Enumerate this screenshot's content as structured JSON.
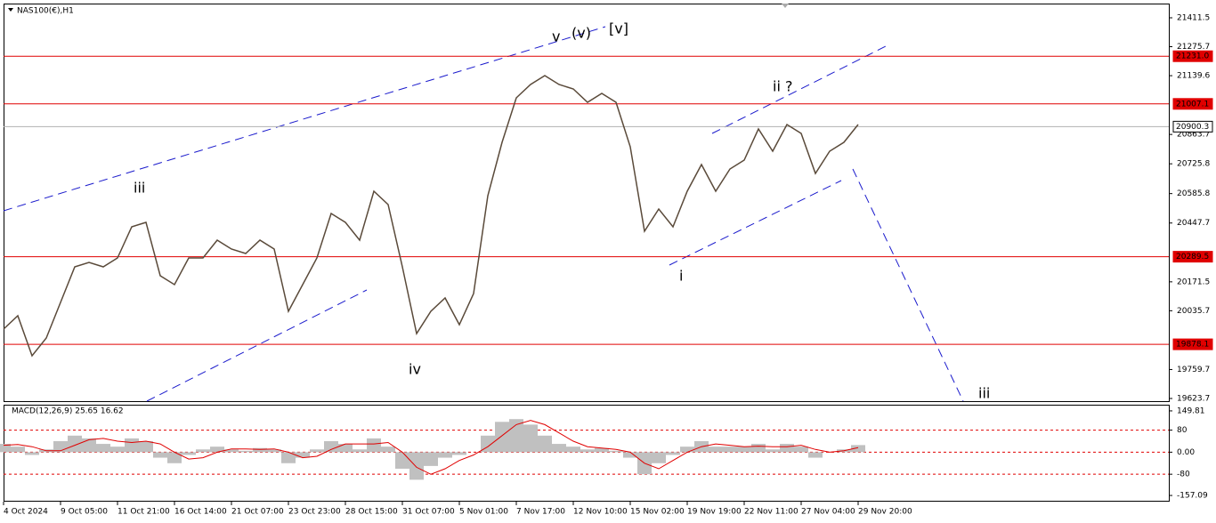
{
  "chart_data": {
    "type": "line",
    "title": "NAS100(€),H1",
    "categories": [
      "4 Oct 2024",
      null,
      null,
      null,
      "9 Oct 05:00",
      null,
      null,
      null,
      "11 Oct 21:00",
      null,
      null,
      null,
      "16 Oct 14:00",
      null,
      null,
      null,
      "21 Oct 07:00",
      null,
      null,
      null,
      "23 Oct 23:00",
      null,
      null,
      null,
      "28 Oct 15:00",
      null,
      null,
      null,
      "31 Oct 07:00",
      null,
      null,
      null,
      "5 Nov 01:00",
      null,
      null,
      null,
      "7 Nov 17:00",
      null,
      null,
      null,
      "12 Nov 10:00",
      null,
      null,
      null,
      "15 Nov 02:00",
      null,
      null,
      null,
      "19 Nov 19:00",
      null,
      null,
      null,
      "22 Nov 11:00",
      null,
      null,
      null,
      "27 Nov 04:00",
      null,
      null,
      null,
      "29 Nov 20:00"
    ],
    "values": [
      19949.6,
      20012.2,
      19824.2,
      19907.8,
      20074.9,
      20241.9,
      20262.8,
      20241.9,
      20283.7,
      20429.9,
      20450.8,
      20200.2,
      20158.4,
      20283.7,
      20283.7,
      20367.2,
      20325.5,
      20304.6,
      20367.2,
      20325.5,
      20033.1,
      20158.4,
      20283.7,
      20492.6,
      20450.8,
      20367.2,
      20597.0,
      20534.3,
      20241.9,
      19928.7,
      20033.1,
      20095.7,
      19970.4,
      20116.6,
      20576.1,
      20826.7,
      21035.6,
      21098.2,
      21140.0,
      21098.2,
      21077.3,
      21014.7,
      21056.5,
      21014.7,
      20805.8,
      20409.0,
      20513.4,
      20429.9,
      20597.0,
      20722.3,
      20597.0,
      20701.4,
      20743.2,
      20889.4,
      20784.9,
      20910.3,
      20868.5,
      20680.5,
      20784.9,
      20826.7,
      20910.3
    ],
    "color": "#5a4a3a",
    "ylim": [
      19611.2,
      21478.3
    ],
    "yticks": [
      21411.5,
      21275.7,
      21139.6,
      20863.7,
      20725.8,
      20585.8,
      20447.7,
      20171.5,
      20035.7,
      19759.7,
      19623.7
    ],
    "levels": [
      {
        "value": 21231.0,
        "label": "21231.0",
        "color": "#e00000"
      },
      {
        "value": 21007.1,
        "label": "21007.1",
        "color": "#e00000"
      },
      {
        "value": 20900.3,
        "label": "20900.3",
        "color": "#b0b0b0"
      },
      {
        "value": 20289.5,
        "label": "20289.5",
        "color": "#e00000"
      },
      {
        "value": 19878.1,
        "label": "19878.1",
        "color": "#e00000"
      }
    ],
    "annotations": [
      {
        "text": "v",
        "color": "#e020e0"
      },
      {
        "text": "(v)",
        "color": "#1a1ad0"
      },
      {
        "text": "[v]",
        "color": "#2a8a2a"
      },
      {
        "text": "ii ?",
        "color": "#e020e0"
      },
      {
        "text": "iii",
        "color": "#e020e0"
      },
      {
        "text": "iv",
        "color": "#e020e0"
      },
      {
        "text": "i",
        "color": "#e020e0"
      },
      {
        "text": "iii",
        "color": "#e020e0"
      }
    ],
    "indicator": {
      "title": "MACD(12,26,9) 25.65 16.62",
      "histogram": [
        30,
        20,
        -10,
        10,
        40,
        60,
        50,
        30,
        20,
        50,
        40,
        -20,
        -40,
        -10,
        10,
        20,
        10,
        5,
        15,
        10,
        -40,
        -20,
        10,
        40,
        30,
        10,
        50,
        20,
        -60,
        -100,
        -50,
        -20,
        -10,
        0,
        60,
        110,
        120,
        100,
        60,
        30,
        20,
        10,
        15,
        5,
        -20,
        -80,
        -40,
        -10,
        20,
        40,
        20,
        20,
        20,
        30,
        10,
        30,
        20,
        -20,
        0,
        10,
        25.65
      ],
      "histogram_color": "#c0c0c0",
      "signal": [
        25,
        28,
        20,
        5,
        5,
        25,
        45,
        50,
        40,
        35,
        40,
        30,
        0,
        -25,
        -20,
        0,
        12,
        12,
        10,
        12,
        0,
        -20,
        -15,
        10,
        30,
        30,
        30,
        35,
        0,
        -55,
        -80,
        -60,
        -30,
        -10,
        20,
        60,
        100,
        115,
        100,
        70,
        40,
        20,
        15,
        10,
        0,
        -40,
        -60,
        -30,
        0,
        20,
        30,
        25,
        20,
        22,
        20,
        20,
        25,
        10,
        0,
        5,
        16.62
      ],
      "signal_color": "#e00000",
      "ylim": [
        -176.3,
        169.0
      ],
      "yticks": [
        149.81,
        80,
        {
          "value": 0,
          "label": "0.00"
        },
        -80,
        -157.09
      ],
      "levels": [
        80,
        0,
        -80
      ]
    }
  }
}
